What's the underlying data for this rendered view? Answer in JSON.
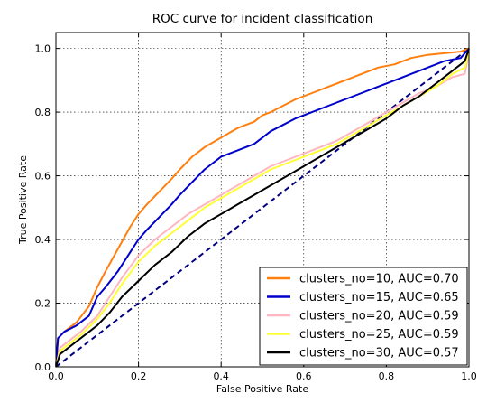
{
  "chart_data": {
    "type": "line",
    "title": "ROC curve for incident classification",
    "xlabel": "False Positive Rate",
    "ylabel": "True Positive Rate",
    "xlim": [
      0.0,
      1.0
    ],
    "ylim": [
      0.0,
      1.05
    ],
    "xticks": [
      "0.0",
      "0.2",
      "0.4",
      "0.6",
      "0.8",
      "1.0"
    ],
    "yticks": [
      "0.0",
      "0.2",
      "0.4",
      "0.6",
      "0.8",
      "1.0"
    ],
    "grid": true,
    "legend_position": "lower-right",
    "series": [
      {
        "name": "clusters_no=10, AUC=0.70",
        "color": "#ff7f0e",
        "x": [
          0,
          0.005,
          0.02,
          0.05,
          0.08,
          0.1,
          0.12,
          0.15,
          0.18,
          0.2,
          0.22,
          0.25,
          0.28,
          0.3,
          0.33,
          0.36,
          0.4,
          0.44,
          0.48,
          0.5,
          0.52,
          0.55,
          0.58,
          0.62,
          0.66,
          0.7,
          0.74,
          0.78,
          0.82,
          0.86,
          0.9,
          0.94,
          0.98,
          1.0
        ],
        "y": [
          0,
          0.09,
          0.11,
          0.14,
          0.19,
          0.25,
          0.3,
          0.37,
          0.44,
          0.48,
          0.51,
          0.55,
          0.59,
          0.62,
          0.66,
          0.69,
          0.72,
          0.75,
          0.77,
          0.79,
          0.8,
          0.82,
          0.84,
          0.86,
          0.88,
          0.9,
          0.92,
          0.94,
          0.95,
          0.97,
          0.98,
          0.985,
          0.99,
          1.0
        ]
      },
      {
        "name": "clusters_no=15, AUC=0.65",
        "color": "#0000cc",
        "x": [
          0,
          0.005,
          0.02,
          0.05,
          0.08,
          0.1,
          0.12,
          0.15,
          0.18,
          0.2,
          0.22,
          0.25,
          0.28,
          0.3,
          0.33,
          0.36,
          0.4,
          0.44,
          0.48,
          0.5,
          0.52,
          0.55,
          0.58,
          0.62,
          0.66,
          0.7,
          0.74,
          0.78,
          0.82,
          0.86,
          0.9,
          0.94,
          0.98,
          1.0
        ],
        "y": [
          0,
          0.09,
          0.11,
          0.13,
          0.16,
          0.22,
          0.25,
          0.3,
          0.36,
          0.4,
          0.43,
          0.47,
          0.51,
          0.54,
          0.58,
          0.62,
          0.66,
          0.68,
          0.7,
          0.72,
          0.74,
          0.76,
          0.78,
          0.8,
          0.82,
          0.84,
          0.86,
          0.88,
          0.9,
          0.92,
          0.94,
          0.96,
          0.97,
          1.0
        ]
      },
      {
        "name": "clusters_no=20, AUC=0.59",
        "color": "#ffb6c1",
        "x": [
          0,
          0.01,
          0.03,
          0.06,
          0.1,
          0.13,
          0.16,
          0.2,
          0.24,
          0.28,
          0.32,
          0.36,
          0.4,
          0.44,
          0.48,
          0.52,
          0.56,
          0.6,
          0.64,
          0.68,
          0.72,
          0.76,
          0.8,
          0.84,
          0.88,
          0.92,
          0.96,
          0.99,
          1.0
        ],
        "y": [
          0,
          0.06,
          0.08,
          0.11,
          0.16,
          0.22,
          0.28,
          0.35,
          0.4,
          0.44,
          0.48,
          0.51,
          0.54,
          0.57,
          0.6,
          0.63,
          0.65,
          0.67,
          0.69,
          0.71,
          0.74,
          0.77,
          0.8,
          0.83,
          0.86,
          0.88,
          0.91,
          0.92,
          0.99
        ]
      },
      {
        "name": "clusters_no=25, AUC=0.59",
        "color": "#ffff33",
        "x": [
          0,
          0.01,
          0.03,
          0.06,
          0.1,
          0.13,
          0.16,
          0.2,
          0.24,
          0.28,
          0.32,
          0.36,
          0.4,
          0.44,
          0.48,
          0.52,
          0.56,
          0.6,
          0.64,
          0.68,
          0.72,
          0.76,
          0.8,
          0.84,
          0.88,
          0.92,
          0.96,
          0.99,
          1.0
        ],
        "y": [
          0,
          0.05,
          0.07,
          0.1,
          0.15,
          0.2,
          0.26,
          0.33,
          0.38,
          0.42,
          0.46,
          0.5,
          0.53,
          0.56,
          0.59,
          0.62,
          0.64,
          0.66,
          0.68,
          0.7,
          0.73,
          0.76,
          0.79,
          0.82,
          0.85,
          0.88,
          0.92,
          0.94,
          0.99
        ]
      },
      {
        "name": "clusters_no=30, AUC=0.57",
        "color": "#000000",
        "x": [
          0,
          0.01,
          0.03,
          0.06,
          0.1,
          0.13,
          0.16,
          0.2,
          0.24,
          0.28,
          0.32,
          0.36,
          0.4,
          0.44,
          0.48,
          0.52,
          0.56,
          0.6,
          0.64,
          0.68,
          0.72,
          0.76,
          0.8,
          0.84,
          0.88,
          0.92,
          0.96,
          0.99,
          1.0
        ],
        "y": [
          0,
          0.04,
          0.06,
          0.09,
          0.13,
          0.17,
          0.22,
          0.27,
          0.32,
          0.36,
          0.41,
          0.45,
          0.48,
          0.51,
          0.54,
          0.57,
          0.6,
          0.63,
          0.66,
          0.69,
          0.72,
          0.75,
          0.78,
          0.82,
          0.85,
          0.89,
          0.93,
          0.96,
          1.0
        ]
      }
    ],
    "reference_line": {
      "x": [
        0,
        1
      ],
      "y": [
        0,
        1
      ],
      "color": "#000080",
      "style": "dashed"
    }
  }
}
